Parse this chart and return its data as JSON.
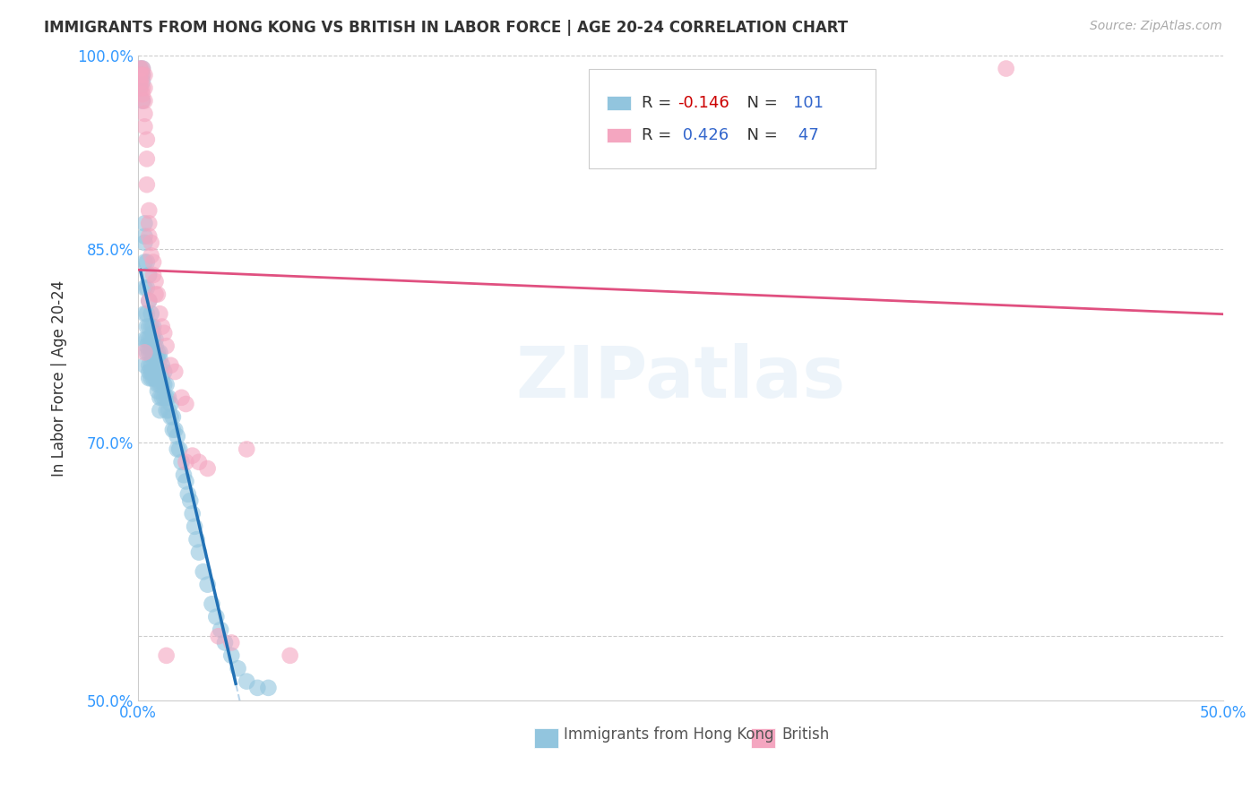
{
  "title": "IMMIGRANTS FROM HONG KONG VS BRITISH IN LABOR FORCE | AGE 20-24 CORRELATION CHART",
  "source": "Source: ZipAtlas.com",
  "ylabel": "In Labor Force | Age 20-24",
  "xlim": [
    0.0,
    0.5
  ],
  "ylim": [
    0.5,
    1.0
  ],
  "xticks": [
    0.0,
    0.1,
    0.2,
    0.3,
    0.4,
    0.5
  ],
  "xticklabels": [
    "0.0%",
    "",
    "",
    "",
    "",
    "50.0%"
  ],
  "ytick_positions": [
    0.5,
    0.55,
    0.6,
    0.65,
    0.7,
    0.75,
    0.8,
    0.85,
    0.9,
    0.95,
    1.0
  ],
  "ytick_labels": [
    "50.0%",
    "",
    "",
    "",
    "70.0%",
    "",
    "",
    "85.0%",
    "",
    "",
    "100.0%"
  ],
  "hk_R": -0.146,
  "hk_N": 101,
  "british_R": 0.426,
  "british_N": 47,
  "hk_color": "#92c5de",
  "british_color": "#f4a6c0",
  "hk_line_color": "#2171b5",
  "hk_dash_color": "#b0cfe8",
  "british_line_color": "#e05080",
  "watermark": "ZIPatlas",
  "background_color": "#ffffff",
  "hk_x": [
    0.001,
    0.001,
    0.002,
    0.002,
    0.002,
    0.003,
    0.003,
    0.003,
    0.003,
    0.003,
    0.003,
    0.003,
    0.004,
    0.004,
    0.004,
    0.004,
    0.004,
    0.004,
    0.005,
    0.005,
    0.005,
    0.005,
    0.005,
    0.005,
    0.005,
    0.005,
    0.006,
    0.006,
    0.006,
    0.006,
    0.006,
    0.006,
    0.006,
    0.007,
    0.007,
    0.007,
    0.007,
    0.007,
    0.007,
    0.007,
    0.008,
    0.008,
    0.008,
    0.008,
    0.008,
    0.008,
    0.009,
    0.009,
    0.009,
    0.009,
    0.009,
    0.01,
    0.01,
    0.01,
    0.01,
    0.01,
    0.01,
    0.011,
    0.011,
    0.011,
    0.011,
    0.012,
    0.012,
    0.012,
    0.013,
    0.013,
    0.013,
    0.014,
    0.014,
    0.015,
    0.015,
    0.016,
    0.016,
    0.017,
    0.018,
    0.018,
    0.019,
    0.02,
    0.021,
    0.022,
    0.023,
    0.024,
    0.025,
    0.026,
    0.027,
    0.028,
    0.03,
    0.032,
    0.034,
    0.036,
    0.038,
    0.04,
    0.043,
    0.046,
    0.05,
    0.055,
    0.06,
    0.001,
    0.002,
    0.003,
    0.004
  ],
  "hk_y": [
    0.99,
    0.985,
    0.99,
    0.985,
    0.98,
    0.87,
    0.86,
    0.84,
    0.82,
    0.8,
    0.78,
    0.76,
    0.84,
    0.82,
    0.8,
    0.79,
    0.78,
    0.77,
    0.83,
    0.81,
    0.79,
    0.78,
    0.77,
    0.76,
    0.755,
    0.75,
    0.8,
    0.79,
    0.78,
    0.77,
    0.76,
    0.755,
    0.75,
    0.79,
    0.785,
    0.78,
    0.775,
    0.77,
    0.765,
    0.75,
    0.78,
    0.775,
    0.77,
    0.765,
    0.755,
    0.75,
    0.77,
    0.765,
    0.755,
    0.745,
    0.74,
    0.77,
    0.765,
    0.755,
    0.745,
    0.735,
    0.725,
    0.76,
    0.75,
    0.745,
    0.735,
    0.755,
    0.745,
    0.735,
    0.745,
    0.735,
    0.725,
    0.735,
    0.725,
    0.73,
    0.72,
    0.72,
    0.71,
    0.71,
    0.705,
    0.695,
    0.695,
    0.685,
    0.675,
    0.67,
    0.66,
    0.655,
    0.645,
    0.635,
    0.625,
    0.615,
    0.6,
    0.59,
    0.575,
    0.565,
    0.555,
    0.545,
    0.535,
    0.525,
    0.515,
    0.51,
    0.51,
    0.975,
    0.965,
    0.855,
    0.775
  ],
  "british_x": [
    0.001,
    0.001,
    0.001,
    0.001,
    0.002,
    0.002,
    0.002,
    0.002,
    0.002,
    0.003,
    0.003,
    0.003,
    0.003,
    0.003,
    0.004,
    0.004,
    0.004,
    0.005,
    0.005,
    0.005,
    0.006,
    0.006,
    0.007,
    0.007,
    0.008,
    0.008,
    0.009,
    0.01,
    0.011,
    0.012,
    0.013,
    0.015,
    0.017,
    0.02,
    0.022,
    0.025,
    0.028,
    0.032,
    0.037,
    0.043,
    0.05,
    0.07,
    0.003,
    0.013,
    0.4,
    0.022,
    0.005
  ],
  "british_y": [
    0.99,
    0.985,
    0.98,
    0.975,
    0.99,
    0.985,
    0.975,
    0.97,
    0.965,
    0.985,
    0.975,
    0.965,
    0.955,
    0.945,
    0.935,
    0.92,
    0.9,
    0.88,
    0.87,
    0.86,
    0.855,
    0.845,
    0.84,
    0.83,
    0.825,
    0.815,
    0.815,
    0.8,
    0.79,
    0.785,
    0.775,
    0.76,
    0.755,
    0.735,
    0.73,
    0.69,
    0.685,
    0.68,
    0.55,
    0.545,
    0.695,
    0.535,
    0.77,
    0.535,
    0.99,
    0.685,
    0.81
  ]
}
